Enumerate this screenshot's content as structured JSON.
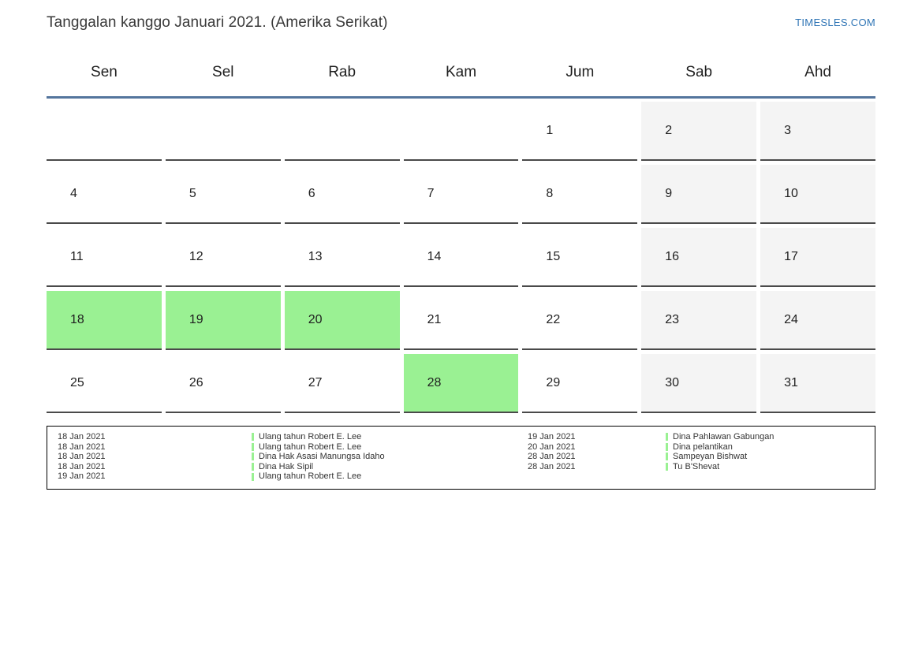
{
  "page": {
    "title": "Tanggalan kanggo Januari 2021. (Amerika Serikat)",
    "site_link": "TIMESLES.COM"
  },
  "calendar": {
    "month": "Januari 2021",
    "day_headers": [
      "Sen",
      "Sel",
      "Rab",
      "Kam",
      "Jum",
      "Sab",
      "Ahd"
    ],
    "weeks": [
      [
        "",
        "",
        "",
        "",
        "1",
        "2",
        "3"
      ],
      [
        "4",
        "5",
        "6",
        "7",
        "8",
        "9",
        "10"
      ],
      [
        "11",
        "12",
        "13",
        "14",
        "15",
        "16",
        "17"
      ],
      [
        "18",
        "19",
        "20",
        "21",
        "22",
        "23",
        "24"
      ],
      [
        "25",
        "26",
        "27",
        "28",
        "29",
        "30",
        "31"
      ]
    ],
    "weekend_columns": [
      "Sab",
      "Ahd"
    ],
    "highlighted_days": [
      "18",
      "19",
      "20",
      "28"
    ]
  },
  "legend": {
    "groups": [
      {
        "entries": [
          {
            "date": "18 Jan 2021",
            "event": "Ulang tahun Robert E. Lee"
          },
          {
            "date": "18 Jan 2021",
            "event": "Ulang tahun Robert E. Lee"
          },
          {
            "date": "18 Jan 2021",
            "event": "Dina Hak Asasi Manungsa Idaho"
          },
          {
            "date": "18 Jan 2021",
            "event": "Dina Hak Sipil"
          },
          {
            "date": "19 Jan 2021",
            "event": "Ulang tahun Robert E. Lee"
          }
        ]
      },
      {
        "entries": [
          {
            "date": "19 Jan 2021",
            "event": "Dina Pahlawan Gabungan"
          },
          {
            "date": "20 Jan 2021",
            "event": "Dina pelantikan"
          },
          {
            "date": "28 Jan 2021",
            "event": "Sampeyan Bishwat"
          },
          {
            "date": "28 Jan 2021",
            "event": "Tu B'Shevat"
          }
        ]
      }
    ]
  },
  "colors": {
    "highlight_green": "#9af193",
    "weekend_bg": "#f4f4f4",
    "link_blue": "#2e74b5",
    "separator_blue": "#54759d",
    "cell_border": "#4a4a4a"
  }
}
